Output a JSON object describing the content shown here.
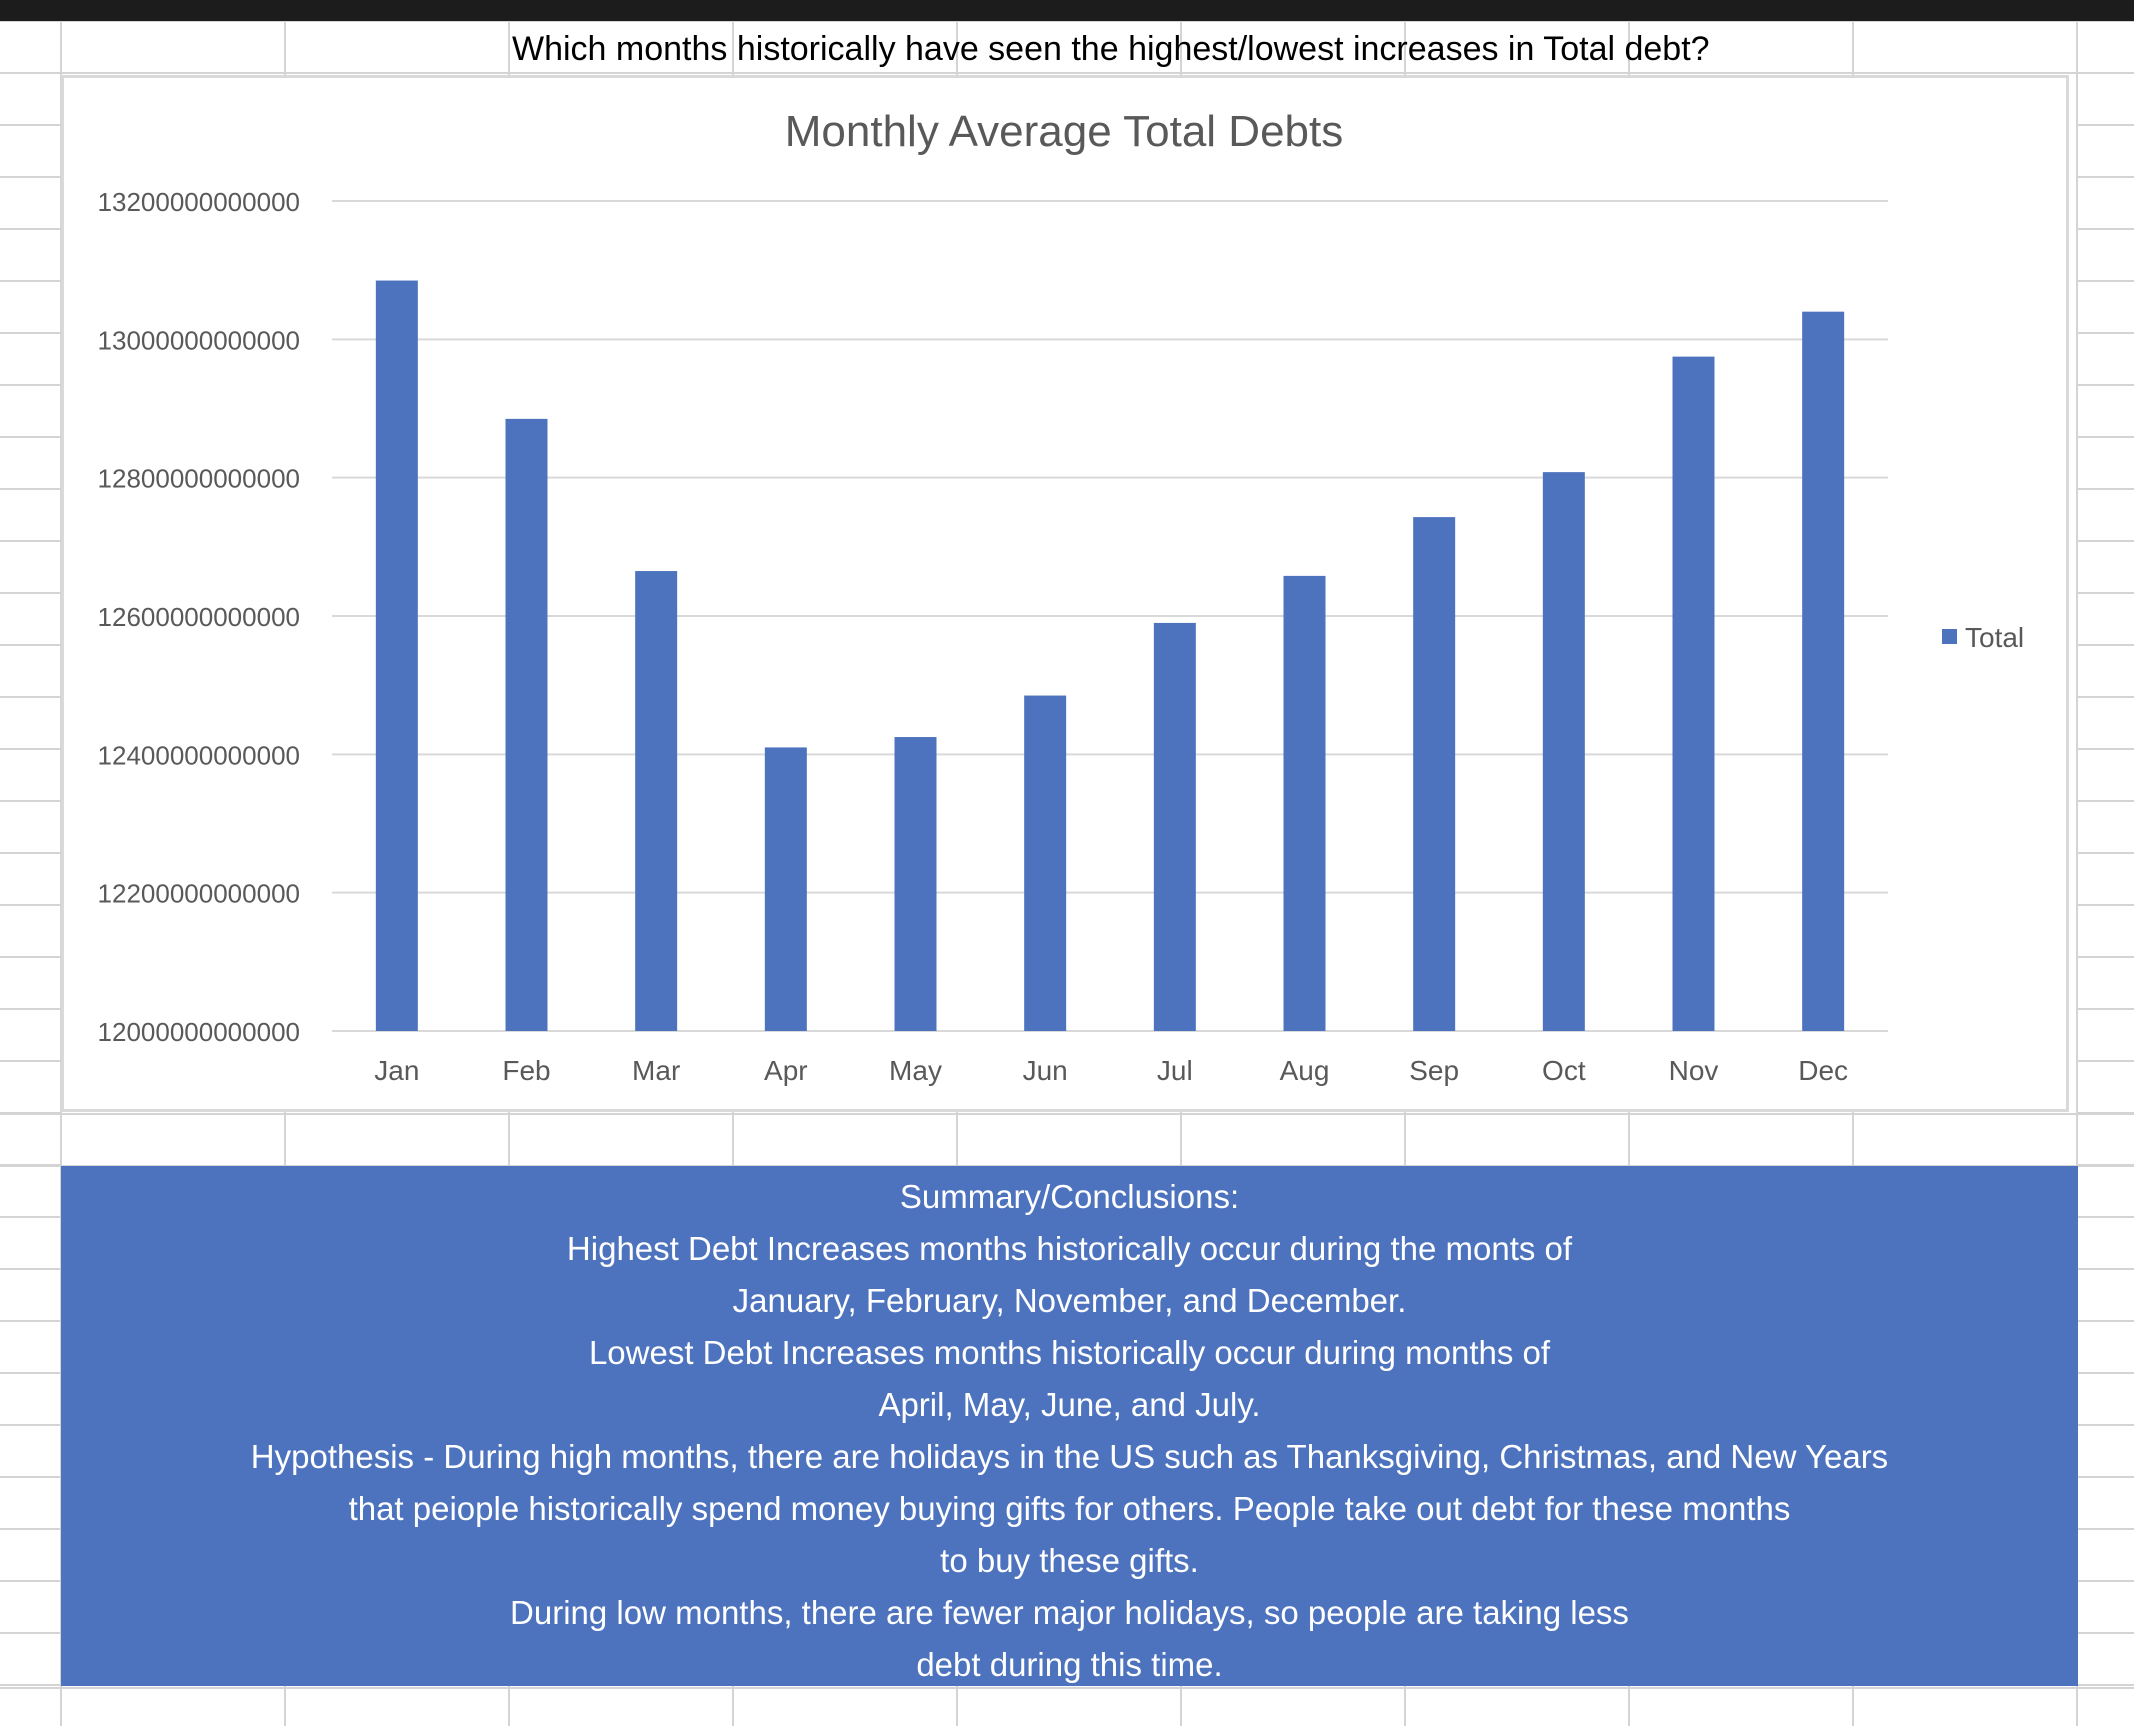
{
  "sheet": {
    "question": "Which months historically have seen the highest/lowest increases in Total debt?"
  },
  "colors": {
    "bar": "#4e73be",
    "summary_bg": "#4e73be",
    "gridline": "#d9d9d9",
    "axis_text": "#595959",
    "title_text": "#595959"
  },
  "chart_data": {
    "type": "bar",
    "title": "Monthly Average Total Debts",
    "categories": [
      "Jan",
      "Feb",
      "Mar",
      "Apr",
      "May",
      "Jun",
      "Jul",
      "Aug",
      "Sep",
      "Oct",
      "Nov",
      "Dec"
    ],
    "series": [
      {
        "name": "Total",
        "values": [
          13085000000000,
          12885000000000,
          12665000000000,
          12410000000000,
          12425000000000,
          12485000000000,
          12590000000000,
          12658000000000,
          12743000000000,
          12808000000000,
          12975000000000,
          13040000000000
        ]
      }
    ],
    "ylim": [
      12000000000000,
      13200000000000
    ],
    "yticks": [
      "12000000000000",
      "12200000000000",
      "12400000000000",
      "12600000000000",
      "12800000000000",
      "13000000000000",
      "13200000000000"
    ],
    "grid": true,
    "legend": "right"
  },
  "summary": {
    "lines": [
      "Summary/Conclusions:",
      "Highest Debt Increases months historically occur during the monts of",
      "January, February, November, and December.",
      "Lowest Debt Increases months historically occur during months of",
      "April, May, June, and July.",
      "Hypothesis - During high months, there are holidays in the US such as Thanksgiving, Christmas, and New Years",
      "that peiople historically spend money buying gifts for others. People take out debt for these months",
      "to buy these gifts.",
      "During low months, there are fewer major holidays, so people are taking less",
      "debt during this time."
    ]
  }
}
